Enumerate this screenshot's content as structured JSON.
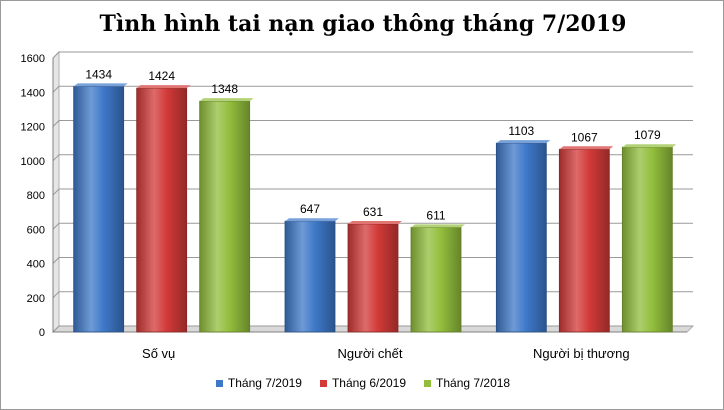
{
  "chart_data": {
    "type": "bar",
    "title": "Tình hình tai nạn giao thông tháng 7/2019",
    "categories": [
      "Số vụ",
      "Người chết",
      "Người bị thương"
    ],
    "series": [
      {
        "name": "Tháng 7/2019",
        "values": [
          1434,
          647,
          1103
        ],
        "color": "#3e78c8"
      },
      {
        "name": "Tháng 6/2019",
        "values": [
          1424,
          631,
          1067
        ],
        "color": "#d23a38"
      },
      {
        "name": "Tháng 7/2018",
        "values": [
          1348,
          611,
          1079
        ],
        "color": "#92be3c"
      }
    ],
    "ylim": [
      0,
      1600
    ],
    "yticks": [
      0,
      200,
      400,
      600,
      800,
      1000,
      1200,
      1400,
      1600
    ],
    "grid": true,
    "legend_position": "bottom"
  }
}
